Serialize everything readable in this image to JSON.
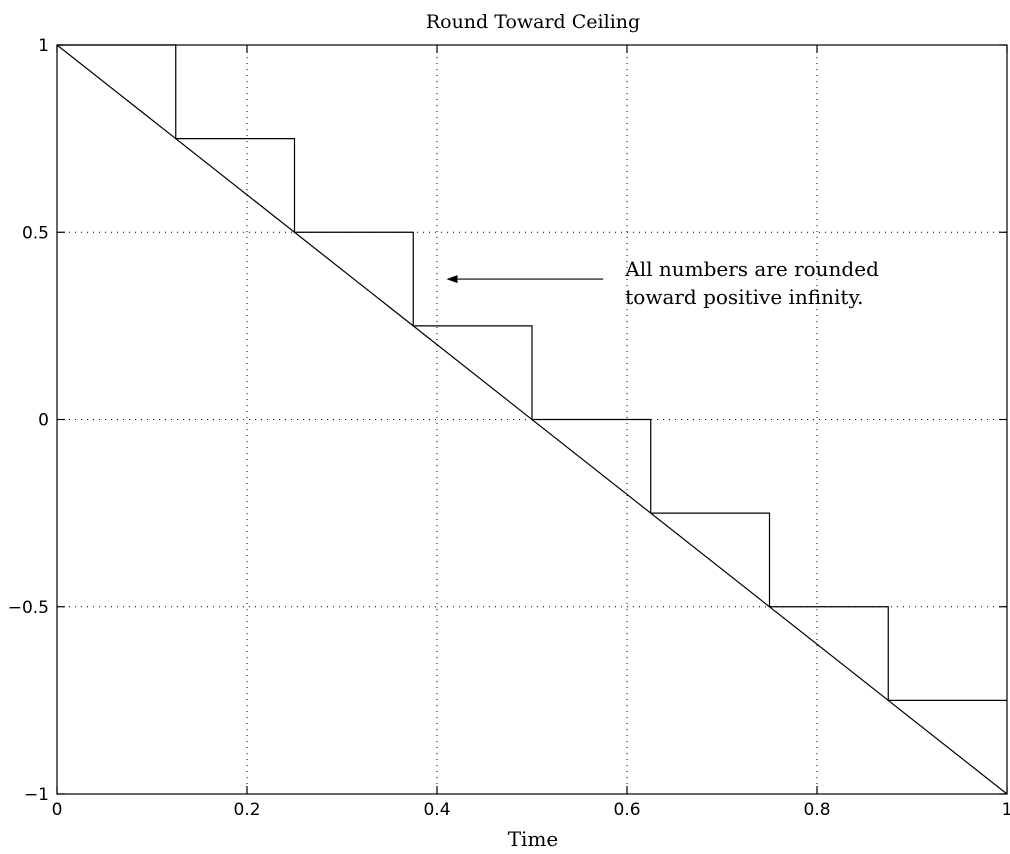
{
  "chart_data": {
    "type": "line",
    "title": "Round Toward Ceiling",
    "xlabel": "Time",
    "ylabel": "",
    "xlim": [
      0,
      1
    ],
    "ylim": [
      -1,
      1
    ],
    "grid": true,
    "x_ticks": [
      0,
      0.2,
      0.4,
      0.6,
      0.8,
      1
    ],
    "x_tick_labels": [
      "0",
      "0.2",
      "0.4",
      "0.6",
      "0.8",
      "1"
    ],
    "y_ticks": [
      -1,
      -0.5,
      0,
      0.5,
      1
    ],
    "y_tick_labels": [
      "−1",
      "−0.5",
      "0",
      "0.5",
      "1"
    ],
    "series": [
      {
        "style": "line",
        "x": [
          0,
          1
        ],
        "y": [
          1,
          -1
        ]
      },
      {
        "style": "step",
        "x": [
          0,
          0.125,
          0.125,
          0.25,
          0.25,
          0.375,
          0.375,
          0.5,
          0.5,
          0.625,
          0.625,
          0.75,
          0.75,
          0.875,
          0.875,
          1
        ],
        "y": [
          1,
          1,
          0.75,
          0.75,
          0.5,
          0.5,
          0.25,
          0.25,
          0,
          0,
          -0.25,
          -0.25,
          -0.5,
          -0.5,
          -0.75,
          -0.75
        ]
      }
    ],
    "annotation": {
      "lines": [
        "All numbers are rounded",
        "toward positive infinity."
      ],
      "arrow_from": [
        0.575,
        0.375
      ],
      "arrow_to": [
        0.41,
        0.375
      ]
    }
  }
}
